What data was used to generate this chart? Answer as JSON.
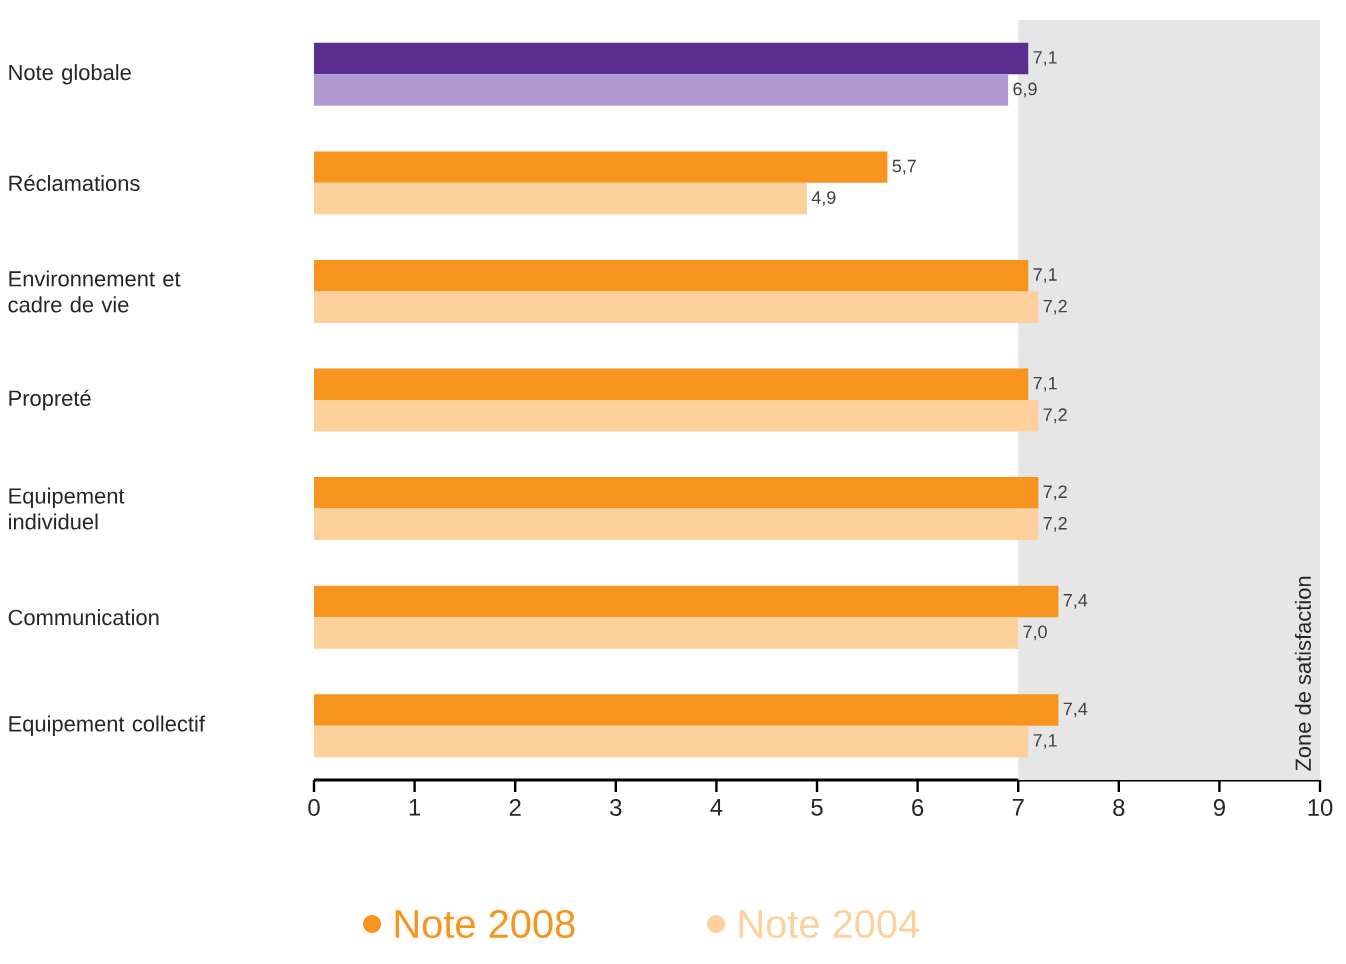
{
  "chart_data": {
    "type": "bar",
    "orientation": "horizontal",
    "categories": [
      "Note globale",
      "Réclamations",
      "Environnement et cadre de vie",
      "Propreté",
      "Equipement individuel",
      "Communication",
      "Equipement collectif"
    ],
    "series": [
      {
        "name": "Note 2008",
        "color": "#f7941d",
        "colors": [
          "#5c2d91",
          "#f7941d",
          "#f7941d",
          "#f7941d",
          "#f7941d",
          "#f7941d",
          "#f7941d"
        ],
        "values": [
          7.1,
          5.7,
          7.1,
          7.1,
          7.2,
          7.4,
          7.4
        ],
        "value_labels": [
          "7,1",
          "5,7",
          "7,1",
          "7,1",
          "7,2",
          "7,4",
          "7,4"
        ]
      },
      {
        "name": "Note 2004",
        "color": "#fdd09c",
        "colors": [
          "#b09ad0",
          "#fdd09c",
          "#fdd09c",
          "#fdd09c",
          "#fdd09c",
          "#fdd09c",
          "#fdd09c"
        ],
        "values": [
          6.9,
          4.9,
          7.2,
          7.2,
          7.2,
          7.0,
          7.1
        ],
        "value_labels": [
          "6,9",
          "4,9",
          "7,2",
          "7,2",
          "7,2",
          "7,0",
          "7,1"
        ]
      }
    ],
    "xlim": [
      0,
      10
    ],
    "xticks": [
      0,
      1,
      2,
      3,
      4,
      5,
      6,
      7,
      8,
      9,
      10
    ],
    "bands": [
      {
        "axis": "x",
        "from": 7,
        "to": 10,
        "label": "Zone de satisfaction",
        "color": "#e6e6e7"
      }
    ],
    "legend": "bottom",
    "grid": false
  }
}
